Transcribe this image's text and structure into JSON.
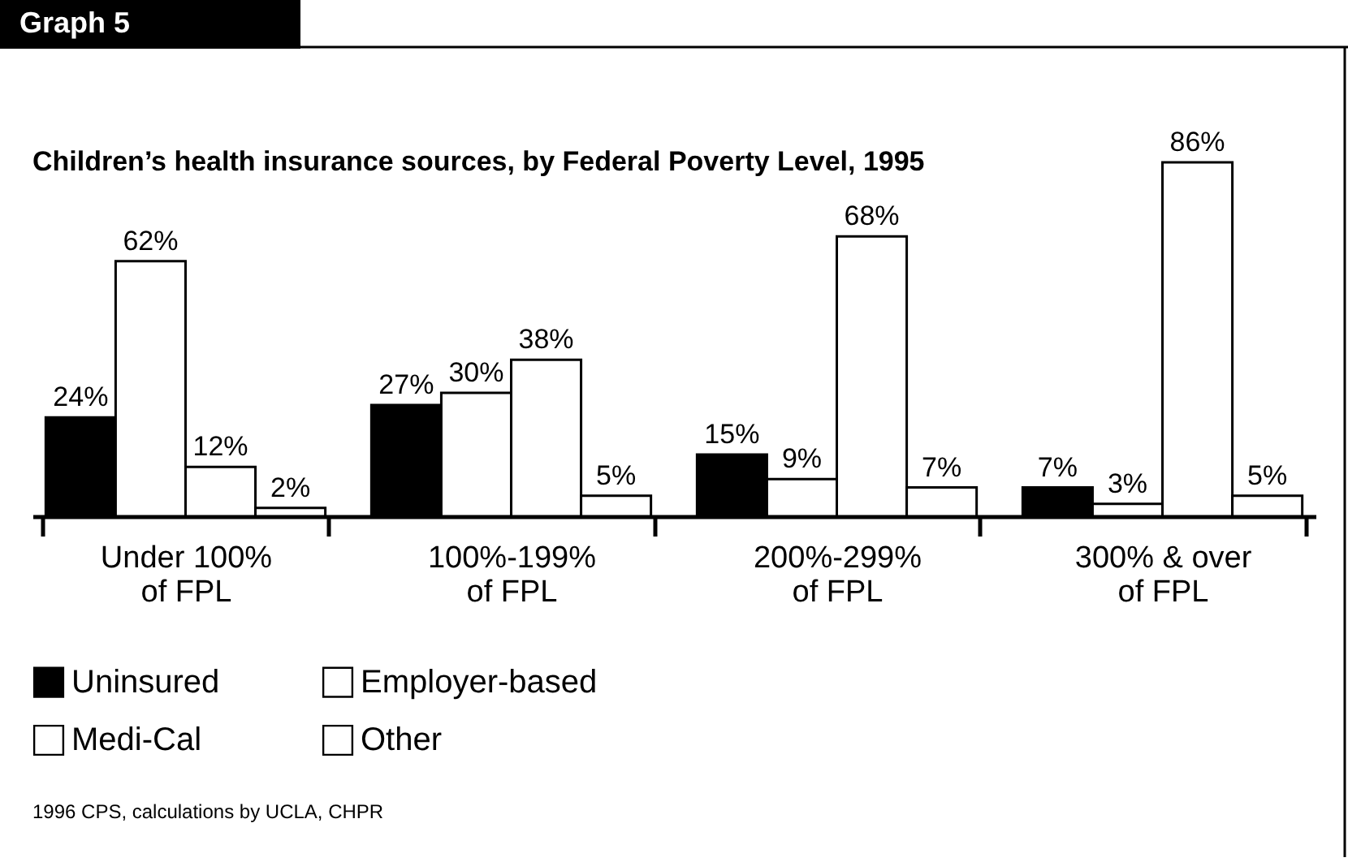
{
  "chart_data": {
    "type": "bar",
    "title": "Children’s health insurance sources, by Federal Poverty Level, 1995",
    "annotations": [
      "Graph 5",
      "1996 CPS, calculations by UCLA, CHPR"
    ],
    "categories": [
      "Under 100%\nof FPL",
      "100%-199%\nof FPL",
      "200%-299%\nof FPL",
      "300% & over\nof FPL"
    ],
    "series": [
      {
        "name": "Uninsured",
        "color": "#000000",
        "values": [
          24,
          27,
          15,
          7
        ],
        "value_labels": [
          "24%",
          "27%",
          "15%",
          "7%"
        ]
      },
      {
        "name": "Medi-Cal",
        "color": "#ffffff",
        "values": [
          62,
          30,
          9,
          3
        ],
        "value_labels": [
          "62%",
          "30%",
          "9%",
          "3%"
        ]
      },
      {
        "name": "Employer-based",
        "color": "#ffffff",
        "values": [
          12,
          38,
          68,
          86
        ],
        "value_labels": [
          "12%",
          "38%",
          "68%",
          "86%"
        ]
      },
      {
        "name": "Other",
        "color": "#ffffff",
        "values": [
          2,
          5,
          7,
          5
        ],
        "value_labels": [
          "2%",
          "5%",
          "7%",
          "5%"
        ]
      }
    ],
    "data_labels": true,
    "legend": "bottom",
    "grid": false
  }
}
